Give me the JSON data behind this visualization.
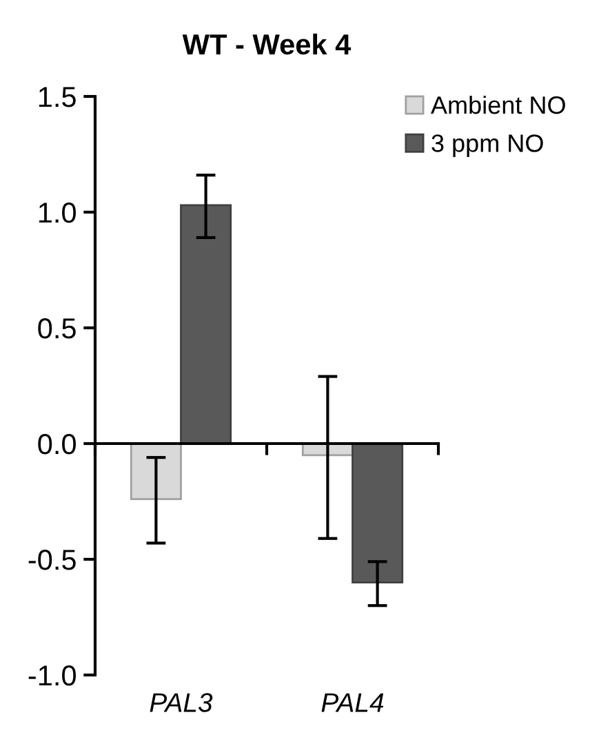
{
  "chart_data": {
    "type": "bar",
    "title": "WT - Week 4",
    "categories": [
      "PAL3",
      "PAL4"
    ],
    "series": [
      {
        "name": "Ambient NO",
        "color": "#d9d9d9",
        "values": [
          -0.24,
          -0.05
        ],
        "errors": [
          [
            -0.43,
            -0.06
          ],
          [
            -0.41,
            0.29
          ]
        ]
      },
      {
        "name": "3 ppm NO",
        "color": "#595959",
        "values": [
          1.03,
          -0.6
        ],
        "errors": [
          [
            0.89,
            1.16
          ],
          [
            -0.7,
            -0.51
          ]
        ]
      }
    ],
    "ylim": [
      -1.0,
      1.5
    ],
    "yticks": [
      {
        "value": -1.0,
        "label": "-1.0"
      },
      {
        "value": -0.5,
        "label": "-0.5"
      },
      {
        "value": 0.0,
        "label": "0.0"
      },
      {
        "value": 0.5,
        "label": "0.5"
      },
      {
        "value": 1.0,
        "label": "1.0"
      },
      {
        "value": 1.5,
        "label": "1.5"
      }
    ],
    "legend": "top right"
  }
}
